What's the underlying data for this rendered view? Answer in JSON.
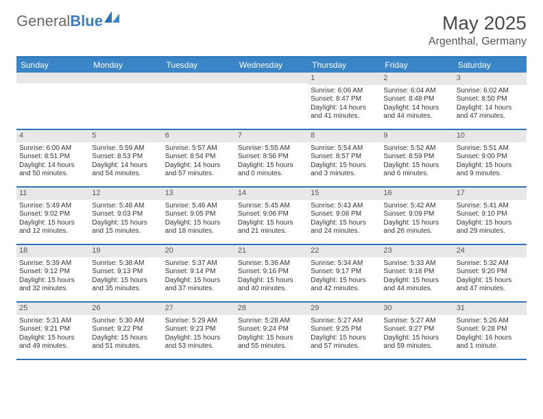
{
  "brand": {
    "part1": "General",
    "part2": "Blue"
  },
  "title": "May 2025",
  "location": "Argenthal, Germany",
  "header_bg": "#3a85c8",
  "rule_color": "#2e72b6",
  "daynum_bg": "#e8e8e8",
  "text_color": "#333333",
  "day_names": [
    "Sunday",
    "Monday",
    "Tuesday",
    "Wednesday",
    "Thursday",
    "Friday",
    "Saturday"
  ],
  "weeks": [
    [
      {
        "n": "",
        "sr": "",
        "ss": "",
        "dl": ""
      },
      {
        "n": "",
        "sr": "",
        "ss": "",
        "dl": ""
      },
      {
        "n": "",
        "sr": "",
        "ss": "",
        "dl": ""
      },
      {
        "n": "",
        "sr": "",
        "ss": "",
        "dl": ""
      },
      {
        "n": "1",
        "sr": "Sunrise: 6:06 AM",
        "ss": "Sunset: 8:47 PM",
        "dl": "Daylight: 14 hours and 41 minutes."
      },
      {
        "n": "2",
        "sr": "Sunrise: 6:04 AM",
        "ss": "Sunset: 8:48 PM",
        "dl": "Daylight: 14 hours and 44 minutes."
      },
      {
        "n": "3",
        "sr": "Sunrise: 6:02 AM",
        "ss": "Sunset: 8:50 PM",
        "dl": "Daylight: 14 hours and 47 minutes."
      }
    ],
    [
      {
        "n": "4",
        "sr": "Sunrise: 6:00 AM",
        "ss": "Sunset: 8:51 PM",
        "dl": "Daylight: 14 hours and 50 minutes."
      },
      {
        "n": "5",
        "sr": "Sunrise: 5:59 AM",
        "ss": "Sunset: 8:53 PM",
        "dl": "Daylight: 14 hours and 54 minutes."
      },
      {
        "n": "6",
        "sr": "Sunrise: 5:57 AM",
        "ss": "Sunset: 8:54 PM",
        "dl": "Daylight: 14 hours and 57 minutes."
      },
      {
        "n": "7",
        "sr": "Sunrise: 5:55 AM",
        "ss": "Sunset: 8:56 PM",
        "dl": "Daylight: 15 hours and 0 minutes."
      },
      {
        "n": "8",
        "sr": "Sunrise: 5:54 AM",
        "ss": "Sunset: 8:57 PM",
        "dl": "Daylight: 15 hours and 3 minutes."
      },
      {
        "n": "9",
        "sr": "Sunrise: 5:52 AM",
        "ss": "Sunset: 8:59 PM",
        "dl": "Daylight: 15 hours and 6 minutes."
      },
      {
        "n": "10",
        "sr": "Sunrise: 5:51 AM",
        "ss": "Sunset: 9:00 PM",
        "dl": "Daylight: 15 hours and 9 minutes."
      }
    ],
    [
      {
        "n": "11",
        "sr": "Sunrise: 5:49 AM",
        "ss": "Sunset: 9:02 PM",
        "dl": "Daylight: 15 hours and 12 minutes."
      },
      {
        "n": "12",
        "sr": "Sunrise: 5:48 AM",
        "ss": "Sunset: 9:03 PM",
        "dl": "Daylight: 15 hours and 15 minutes."
      },
      {
        "n": "13",
        "sr": "Sunrise: 5:46 AM",
        "ss": "Sunset: 9:05 PM",
        "dl": "Daylight: 15 hours and 18 minutes."
      },
      {
        "n": "14",
        "sr": "Sunrise: 5:45 AM",
        "ss": "Sunset: 9:06 PM",
        "dl": "Daylight: 15 hours and 21 minutes."
      },
      {
        "n": "15",
        "sr": "Sunrise: 5:43 AM",
        "ss": "Sunset: 9:08 PM",
        "dl": "Daylight: 15 hours and 24 minutes."
      },
      {
        "n": "16",
        "sr": "Sunrise: 5:42 AM",
        "ss": "Sunset: 9:09 PM",
        "dl": "Daylight: 15 hours and 26 minutes."
      },
      {
        "n": "17",
        "sr": "Sunrise: 5:41 AM",
        "ss": "Sunset: 9:10 PM",
        "dl": "Daylight: 15 hours and 29 minutes."
      }
    ],
    [
      {
        "n": "18",
        "sr": "Sunrise: 5:39 AM",
        "ss": "Sunset: 9:12 PM",
        "dl": "Daylight: 15 hours and 32 minutes."
      },
      {
        "n": "19",
        "sr": "Sunrise: 5:38 AM",
        "ss": "Sunset: 9:13 PM",
        "dl": "Daylight: 15 hours and 35 minutes."
      },
      {
        "n": "20",
        "sr": "Sunrise: 5:37 AM",
        "ss": "Sunset: 9:14 PM",
        "dl": "Daylight: 15 hours and 37 minutes."
      },
      {
        "n": "21",
        "sr": "Sunrise: 5:36 AM",
        "ss": "Sunset: 9:16 PM",
        "dl": "Daylight: 15 hours and 40 minutes."
      },
      {
        "n": "22",
        "sr": "Sunrise: 5:34 AM",
        "ss": "Sunset: 9:17 PM",
        "dl": "Daylight: 15 hours and 42 minutes."
      },
      {
        "n": "23",
        "sr": "Sunrise: 5:33 AM",
        "ss": "Sunset: 9:18 PM",
        "dl": "Daylight: 15 hours and 44 minutes."
      },
      {
        "n": "24",
        "sr": "Sunrise: 5:32 AM",
        "ss": "Sunset: 9:20 PM",
        "dl": "Daylight: 15 hours and 47 minutes."
      }
    ],
    [
      {
        "n": "25",
        "sr": "Sunrise: 5:31 AM",
        "ss": "Sunset: 9:21 PM",
        "dl": "Daylight: 15 hours and 49 minutes."
      },
      {
        "n": "26",
        "sr": "Sunrise: 5:30 AM",
        "ss": "Sunset: 9:22 PM",
        "dl": "Daylight: 15 hours and 51 minutes."
      },
      {
        "n": "27",
        "sr": "Sunrise: 5:29 AM",
        "ss": "Sunset: 9:23 PM",
        "dl": "Daylight: 15 hours and 53 minutes."
      },
      {
        "n": "28",
        "sr": "Sunrise: 5:28 AM",
        "ss": "Sunset: 9:24 PM",
        "dl": "Daylight: 15 hours and 55 minutes."
      },
      {
        "n": "29",
        "sr": "Sunrise: 5:27 AM",
        "ss": "Sunset: 9:25 PM",
        "dl": "Daylight: 15 hours and 57 minutes."
      },
      {
        "n": "30",
        "sr": "Sunrise: 5:27 AM",
        "ss": "Sunset: 9:27 PM",
        "dl": "Daylight: 15 hours and 59 minutes."
      },
      {
        "n": "31",
        "sr": "Sunrise: 5:26 AM",
        "ss": "Sunset: 9:28 PM",
        "dl": "Daylight: 16 hours and 1 minute."
      }
    ]
  ]
}
